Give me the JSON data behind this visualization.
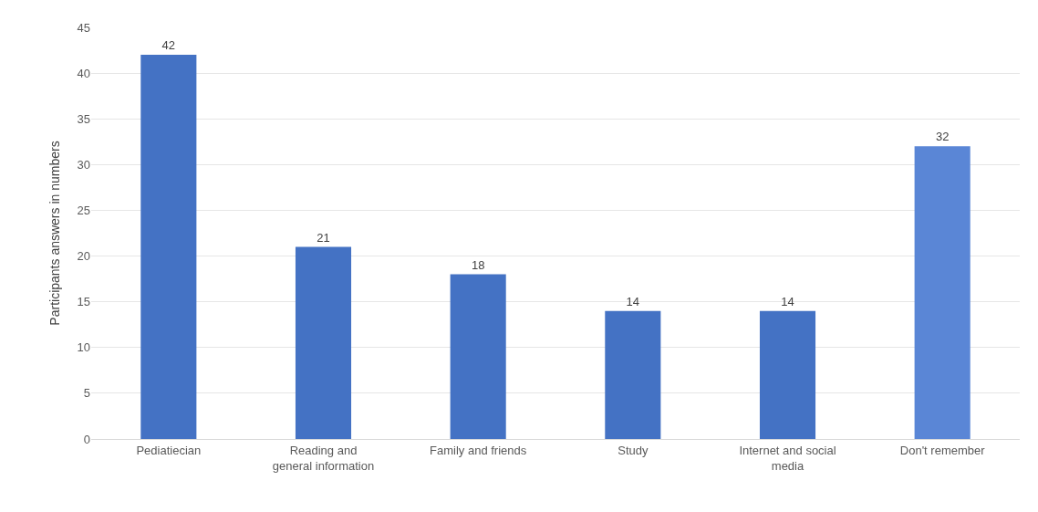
{
  "chart_data": {
    "type": "bar",
    "ylabel": "Participants answers in numbers",
    "categories": [
      "Pediatiecian",
      "Reading and\ngeneral information",
      "Family and friends",
      "Study",
      "Internet and social\nmedia",
      "Don't remember"
    ],
    "values": [
      42,
      21,
      18,
      14,
      14,
      32
    ],
    "colors": [
      "#4472c4",
      "#4472c4",
      "#4472c4",
      "#4472c4",
      "#4472c4",
      "#5a86d6"
    ],
    "ylim": [
      0,
      45
    ],
    "yticks": [
      0,
      5,
      10,
      15,
      20,
      25,
      30,
      35,
      40,
      45
    ],
    "grid": "y",
    "data_labels": true
  }
}
